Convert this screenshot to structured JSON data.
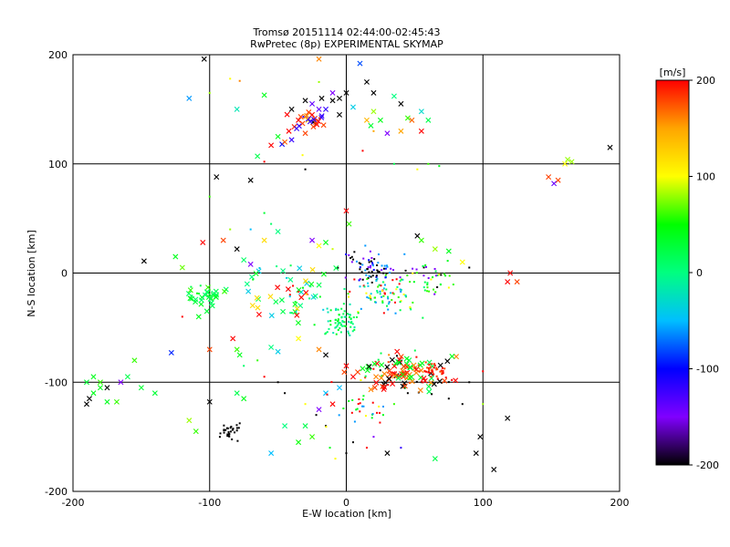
{
  "chart_data": [
    {
      "type": "scatter",
      "title": "Tromsø 20151114 02:44:00-02:45:43",
      "subtitle": "RwPretec (8p) EXPERIMENTAL SKYMAP",
      "xlabel": "E-W location [km]",
      "ylabel": "N-S location [km]",
      "xlim": [
        -200,
        200
      ],
      "ylim": [
        -200,
        200
      ],
      "xticks": [
        -200,
        -100,
        0,
        100,
        200
      ],
      "yticks": [
        -200,
        -100,
        0,
        100,
        200
      ],
      "xtick_labels": [
        "-200",
        "-100",
        "0",
        "100",
        "200"
      ],
      "ytick_labels": [
        "-200",
        "-100",
        "0",
        "100",
        "200"
      ],
      "grid": true,
      "marker_types": [
        "x",
        "dot"
      ],
      "points": [
        [
          -104,
          196,
          "x",
          -200
        ],
        [
          -20,
          196,
          "x",
          160
        ],
        [
          10,
          192,
          "x",
          -80
        ],
        [
          -85,
          178,
          "dot",
          100
        ],
        [
          -78,
          176,
          "dot",
          160
        ],
        [
          -115,
          160,
          "x",
          -60
        ],
        [
          -100,
          165,
          "dot",
          80
        ],
        [
          -20,
          175,
          "dot",
          80
        ],
        [
          -80,
          150,
          "x",
          -20
        ],
        [
          -60,
          163,
          "x",
          40
        ],
        [
          -10,
          165,
          "x",
          -150
        ],
        [
          0,
          165,
          "x",
          -200
        ],
        [
          -5,
          160,
          "x",
          -200
        ],
        [
          15,
          175,
          "x",
          -200
        ],
        [
          35,
          162,
          "x",
          0
        ],
        [
          20,
          165,
          "x",
          -200
        ],
        [
          40,
          155,
          "x",
          -200
        ],
        [
          45,
          142,
          "x",
          60
        ],
        [
          48,
          140,
          "x",
          170
        ],
        [
          55,
          148,
          "x",
          -30
        ],
        [
          60,
          140,
          "x",
          20
        ],
        [
          55,
          130,
          "x",
          200
        ],
        [
          40,
          130,
          "x",
          150
        ],
        [
          30,
          128,
          "x",
          -150
        ],
        [
          20,
          148,
          "x",
          80
        ],
        [
          15,
          140,
          "x",
          140
        ],
        [
          25,
          140,
          "x",
          40
        ],
        [
          18,
          135,
          "x",
          30
        ],
        [
          -10,
          158,
          "x",
          -200
        ],
        [
          -20,
          150,
          "x",
          -140
        ],
        [
          -25,
          145,
          "x",
          200
        ],
        [
          -28,
          140,
          "x",
          120
        ],
        [
          -35,
          140,
          "x",
          200
        ],
        [
          -32,
          137,
          "x",
          180
        ],
        [
          -38,
          134,
          "x",
          190
        ],
        [
          -42,
          130,
          "x",
          200
        ],
        [
          -30,
          128,
          "x",
          180
        ],
        [
          -40,
          122,
          "x",
          -120
        ],
        [
          -47,
          118,
          "x",
          -100
        ],
        [
          -55,
          117,
          "x",
          200
        ],
        [
          -65,
          107,
          "x",
          20
        ],
        [
          -40,
          150,
          "x",
          -200
        ],
        [
          -30,
          158,
          "x",
          -200
        ],
        [
          -18,
          160,
          "x",
          -200
        ],
        [
          5,
          152,
          "x",
          -40
        ],
        [
          -5,
          145,
          "x",
          -200
        ],
        [
          -15,
          150,
          "x",
          -120
        ],
        [
          -25,
          155,
          "x",
          -140
        ],
        [
          -50,
          125,
          "x",
          40
        ],
        [
          -45,
          120,
          "x",
          170
        ],
        [
          12,
          112,
          "dot",
          200
        ],
        [
          20,
          130,
          "dot",
          150
        ],
        [
          -32,
          108,
          "dot",
          100
        ],
        [
          -60,
          102,
          "dot",
          200
        ],
        [
          -30,
          95,
          "dot",
          -200
        ],
        [
          35,
          100,
          "dot",
          20
        ],
        [
          68,
          98,
          "dot",
          40
        ],
        [
          60,
          100,
          "dot",
          60
        ],
        [
          52,
          95,
          "dot",
          100
        ],
        [
          148,
          88,
          "x",
          180
        ],
        [
          155,
          85,
          "x",
          180
        ],
        [
          152,
          82,
          "x",
          -140
        ],
        [
          160,
          100,
          "x",
          100
        ],
        [
          162,
          104,
          "x",
          80
        ],
        [
          165,
          102,
          "x",
          80
        ],
        [
          193,
          115,
          "x",
          -200
        ],
        [
          -95,
          88,
          "x",
          -200
        ],
        [
          -70,
          85,
          "x",
          -200
        ],
        [
          -100,
          70,
          "dot",
          60
        ],
        [
          -85,
          40,
          "dot",
          80
        ],
        [
          -70,
          40,
          "dot",
          -50
        ],
        [
          -60,
          55,
          "dot",
          30
        ],
        [
          -55,
          45,
          "dot",
          10
        ],
        [
          -50,
          38,
          "x",
          0
        ],
        [
          -60,
          30,
          "x",
          120
        ],
        [
          -80,
          22,
          "x",
          -200
        ],
        [
          -90,
          30,
          "x",
          180
        ],
        [
          -105,
          28,
          "x",
          200
        ],
        [
          -120,
          5,
          "x",
          70
        ],
        [
          -125,
          15,
          "x",
          40
        ],
        [
          -148,
          11,
          "x",
          -200
        ],
        [
          -75,
          12,
          "x",
          10
        ],
        [
          -70,
          8,
          "x",
          -150
        ],
        [
          -25,
          30,
          "x",
          -150
        ],
        [
          -20,
          25,
          "x",
          100
        ],
        [
          -15,
          28,
          "x",
          40
        ],
        [
          -10,
          22,
          "dot",
          90
        ],
        [
          0,
          57,
          "x",
          200
        ],
        [
          2,
          45,
          "x",
          60
        ],
        [
          52,
          34,
          "x",
          -200
        ],
        [
          55,
          30,
          "x",
          60
        ],
        [
          65,
          22,
          "x",
          80
        ],
        [
          75,
          20,
          "x",
          40
        ],
        [
          85,
          10,
          "x",
          100
        ],
        [
          90,
          5,
          "dot",
          -200
        ],
        [
          120,
          0,
          "x",
          200
        ],
        [
          118,
          -8,
          "x",
          200
        ],
        [
          125,
          -8,
          "x",
          180
        ],
        [
          -120,
          -40,
          "dot",
          200
        ],
        [
          -108,
          -40,
          "x",
          40
        ],
        [
          -102,
          -35,
          "x",
          30
        ],
        [
          -98,
          -30,
          "x",
          20
        ],
        [
          -95,
          -20,
          "x",
          20
        ],
        [
          -88,
          -15,
          "x",
          10
        ],
        [
          -83,
          -60,
          "x",
          200
        ],
        [
          -80,
          -70,
          "x",
          60
        ],
        [
          -100,
          -70,
          "x",
          180
        ],
        [
          -128,
          -73,
          "x",
          -90
        ],
        [
          -78,
          -75,
          "x",
          40
        ],
        [
          -55,
          -68,
          "x",
          0
        ],
        [
          -50,
          -72,
          "x",
          -40
        ],
        [
          -35,
          -60,
          "x",
          100
        ],
        [
          -20,
          -70,
          "x",
          160
        ],
        [
          -15,
          -75,
          "x",
          -200
        ],
        [
          0,
          -85,
          "x",
          200
        ],
        [
          5,
          -95,
          "x",
          200
        ],
        [
          -5,
          -105,
          "x",
          -50
        ],
        [
          -15,
          -110,
          "x",
          -50
        ],
        [
          -30,
          -140,
          "x",
          20
        ],
        [
          -25,
          -150,
          "x",
          60
        ],
        [
          -35,
          -155,
          "x",
          50
        ],
        [
          -45,
          -140,
          "x",
          0
        ],
        [
          -20,
          -125,
          "x",
          -150
        ],
        [
          -10,
          -120,
          "x",
          200
        ],
        [
          -55,
          -165,
          "x",
          -50
        ],
        [
          -80,
          -110,
          "x",
          20
        ],
        [
          -75,
          -115,
          "x",
          40
        ],
        [
          -100,
          -118,
          "x",
          -200
        ],
        [
          -110,
          -145,
          "x",
          60
        ],
        [
          -115,
          -135,
          "x",
          80
        ],
        [
          -140,
          -110,
          "x",
          30
        ],
        [
          -150,
          -105,
          "x",
          30
        ],
        [
          -155,
          -80,
          "x",
          60
        ],
        [
          -160,
          -95,
          "x",
          20
        ],
        [
          -165,
          -100,
          "x",
          -150
        ],
        [
          -175,
          -105,
          "x",
          -200
        ],
        [
          -180,
          -105,
          "x",
          40
        ],
        [
          -185,
          -110,
          "x",
          40
        ],
        [
          -190,
          -100,
          "x",
          30
        ],
        [
          -185,
          -95,
          "x",
          40
        ],
        [
          -180,
          -100,
          "x",
          60
        ],
        [
          -175,
          -118,
          "x",
          40
        ],
        [
          -168,
          -118,
          "x",
          60
        ],
        [
          -190,
          -120,
          "x",
          -200
        ],
        [
          -188,
          -115,
          "x",
          -200
        ],
        [
          65,
          -170,
          "x",
          20
        ],
        [
          108,
          -180,
          "x",
          -200
        ],
        [
          118,
          -133,
          "x",
          -200
        ],
        [
          95,
          -165,
          "x",
          -200
        ],
        [
          98,
          -150,
          "x",
          -200
        ],
        [
          30,
          -165,
          "x",
          -200
        ],
        [
          40,
          -160,
          "dot",
          -120
        ],
        [
          -65,
          -80,
          "dot",
          60
        ],
        [
          -75,
          -85,
          "dot",
          10
        ],
        [
          -60,
          -95,
          "dot",
          200
        ],
        [
          -50,
          -100,
          "dot",
          -200
        ],
        [
          -45,
          -110,
          "dot",
          -200
        ],
        [
          -30,
          -120,
          "dot",
          100
        ],
        [
          -22,
          -130,
          "dot",
          -200
        ],
        [
          -15,
          -140,
          "dot",
          -200
        ],
        [
          -12,
          -160,
          "dot",
          40
        ],
        [
          -8,
          -170,
          "dot",
          100
        ],
        [
          0,
          -165,
          "dot",
          -200
        ],
        [
          5,
          -155,
          "dot",
          -200
        ],
        [
          15,
          -160,
          "dot",
          200
        ],
        [
          20,
          -150,
          "dot",
          -150
        ],
        [
          27,
          -130,
          "dot",
          40
        ],
        [
          35,
          -120,
          "dot",
          60
        ],
        [
          45,
          -110,
          "dot",
          -200
        ],
        [
          55,
          -100,
          "dot",
          -200
        ],
        [
          75,
          -115,
          "dot",
          -200
        ],
        [
          85,
          -120,
          "dot",
          -200
        ],
        [
          90,
          -100,
          "dot",
          -200
        ],
        [
          100,
          -90,
          "dot",
          200
        ],
        [
          100,
          -120,
          "dot",
          80
        ]
      ],
      "clusters": [
        {
          "center": [
            -25,
            140
          ],
          "spread": [
            10,
            8
          ],
          "count": 22,
          "marker": "x",
          "values": [
            120,
            200,
            160,
            180,
            -120,
            -200
          ]
        },
        {
          "center": [
            -105,
            -20
          ],
          "spread": [
            10,
            6
          ],
          "count": 30,
          "marker": "x",
          "values": [
            40,
            20,
            30,
            60,
            10
          ]
        },
        {
          "center": [
            -85,
            -145
          ],
          "spread": [
            6,
            5
          ],
          "count": 30,
          "marker": "dot",
          "values": [
            -200
          ]
        },
        {
          "center": [
            18,
            5
          ],
          "spread": [
            12,
            10
          ],
          "count": 70,
          "marker": "dot",
          "values": [
            -200,
            -150,
            -100,
            -60,
            -200
          ]
        },
        {
          "center": [
            30,
            -20
          ],
          "spread": [
            18,
            12
          ],
          "count": 90,
          "marker": "dot",
          "values": [
            0,
            20,
            -40,
            60,
            100,
            200,
            -60
          ]
        },
        {
          "center": [
            -5,
            -45
          ],
          "spread": [
            10,
            10
          ],
          "count": 70,
          "marker": "dot",
          "values": [
            10,
            20,
            0,
            -20,
            40
          ]
        },
        {
          "center": [
            40,
            -90
          ],
          "spread": [
            25,
            12
          ],
          "count": 120,
          "marker": "x",
          "values": [
            200,
            180,
            160,
            -200,
            40,
            20
          ]
        },
        {
          "center": [
            65,
            -88
          ],
          "spread": [
            8,
            5
          ],
          "count": 40,
          "marker": "dot",
          "values": [
            200,
            180
          ]
        },
        {
          "center": [
            60,
            -5
          ],
          "spread": [
            15,
            15
          ],
          "count": 40,
          "marker": "dot",
          "values": [
            40,
            60,
            -200,
            100,
            20,
            -150
          ]
        },
        {
          "center": [
            -40,
            -20
          ],
          "spread": [
            25,
            20
          ],
          "count": 60,
          "marker": "x",
          "values": [
            0,
            20,
            40,
            -40,
            200,
            120
          ]
        },
        {
          "center": [
            10,
            -120
          ],
          "spread": [
            20,
            15
          ],
          "count": 30,
          "marker": "dot",
          "values": [
            40,
            100,
            200,
            -60
          ]
        }
      ]
    },
    {
      "type": "heatmap",
      "title": "[m/s]",
      "colorbar_range": [
        -200,
        200
      ],
      "colorbar_ticks": [
        200,
        100,
        0,
        -100,
        -200
      ],
      "colorbar_tick_labels": [
        "200",
        "100",
        "0",
        "-100",
        "-200"
      ],
      "colormap": [
        "#000000",
        "#8000ff",
        "#0000ff",
        "#00bfff",
        "#00ff80",
        "#00ff00",
        "#ffff00",
        "#ffa500",
        "#ff0000"
      ]
    }
  ]
}
